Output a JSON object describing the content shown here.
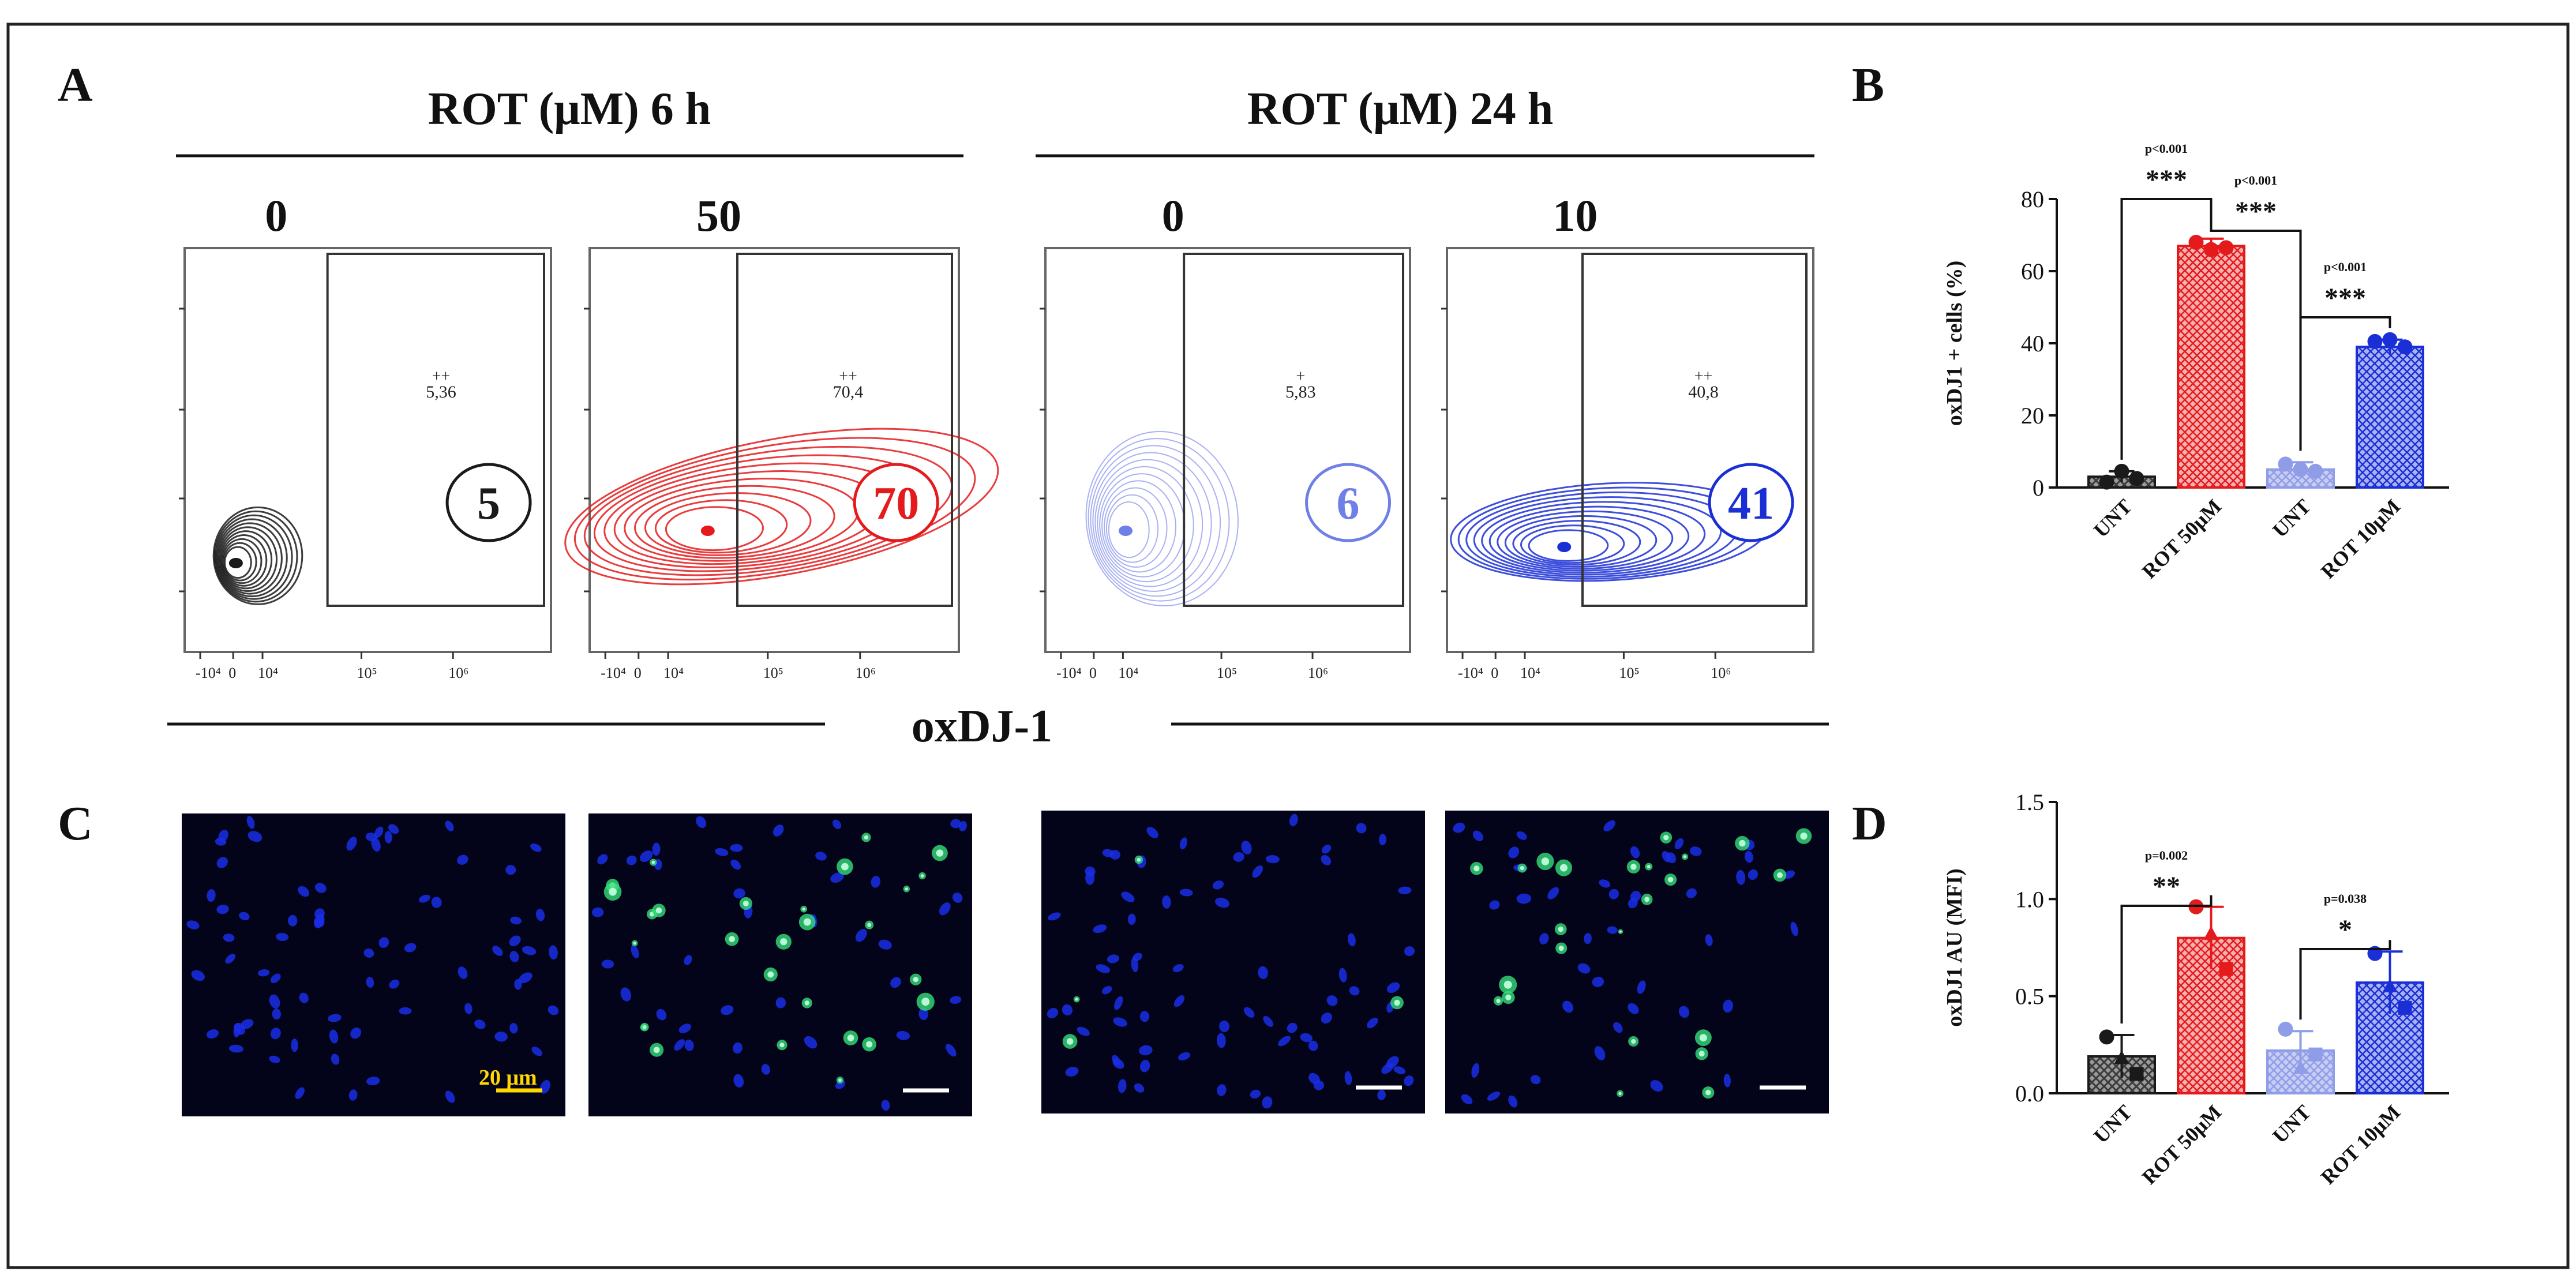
{
  "panel_letters": {
    "a": "A",
    "b": "B",
    "c": "C",
    "d": "D"
  },
  "flow": {
    "group_6h_title": "ROT (μM) 6 h",
    "group_24h_title": "ROT (μM) 24 h",
    "common_axis_label": "oxDJ-1",
    "x_tick_labels": [
      "-10⁴",
      "0",
      "10⁴",
      "10⁵",
      "10⁶"
    ],
    "plots": [
      {
        "dose": "0",
        "gate_value": "5,36",
        "gate_marker": "++",
        "circled_percent": "5",
        "color": "#1a1a1a"
      },
      {
        "dose": "50",
        "gate_value": "70,4",
        "gate_marker": "++",
        "circled_percent": "70",
        "color": "#e41a1c"
      },
      {
        "dose": "0",
        "gate_value": "5,83",
        "gate_marker": "+",
        "circled_percent": "6",
        "color": "#6f7fe8"
      },
      {
        "dose": "10",
        "gate_value": "40,8",
        "gate_marker": "++",
        "circled_percent": "41",
        "color": "#1b2fd6"
      }
    ]
  },
  "microscopy": {
    "scale_bar_label": "20 μm",
    "image_names": [
      "rot-6h-0",
      "rot-6h-50",
      "rot-24h-0",
      "rot-24h-10"
    ]
  },
  "colors": {
    "black": "#1a1a1a",
    "red": "#e41a1c",
    "light_blue": "#8f9ce8",
    "dark_blue": "#1b2fd6",
    "scale_bar_yellow": "#ffd800"
  },
  "chart_data": [
    {
      "panel": "B",
      "type": "bar",
      "ylabel": "oxDJ1 + cells (%)",
      "ylim": [
        0,
        80
      ],
      "yticks": [
        0,
        20,
        40,
        60,
        80
      ],
      "categories": [
        "UNT",
        "ROT 50μM",
        "UNT",
        "ROT 10μM"
      ],
      "values": [
        3,
        67,
        5,
        39
      ],
      "errors": [
        1.5,
        2,
        2,
        2
      ],
      "points": [
        [
          1.5,
          4.5,
          2.5
        ],
        [
          68,
          66,
          66.5
        ],
        [
          6.5,
          5,
          4.5
        ],
        [
          40.5,
          41,
          39
        ]
      ],
      "comparisons": [
        {
          "from": 0,
          "to": 1,
          "p": "p<0.001",
          "stars": "***"
        },
        {
          "from": 1,
          "to": 2,
          "p": "p<0.001",
          "stars": "***"
        },
        {
          "from": 2,
          "to": 3,
          "p": "p<0.001",
          "stars": "***"
        }
      ]
    },
    {
      "panel": "D",
      "type": "bar",
      "ylabel": "oxDJ1 AU (MFI)",
      "ylim": [
        0,
        1.5
      ],
      "yticks": [
        "0.0",
        "0.5",
        "1.0",
        "1.5"
      ],
      "categories": [
        "UNT",
        "ROT 50μM",
        "UNT",
        "ROT 10μM"
      ],
      "values": [
        0.19,
        0.8,
        0.22,
        0.57
      ],
      "errors": [
        0.11,
        0.16,
        0.1,
        0.16
      ],
      "points": [
        [
          0.29,
          0.18,
          0.1
        ],
        [
          0.96,
          0.82,
          0.64
        ],
        [
          0.33,
          0.13,
          0.2
        ],
        [
          0.72,
          0.55,
          0.44
        ]
      ],
      "comparisons": [
        {
          "from": 0,
          "to": 1,
          "p": "p=0.002",
          "stars": "**"
        },
        {
          "from": 2,
          "to": 3,
          "p": "p=0.038",
          "stars": "*"
        }
      ]
    }
  ]
}
